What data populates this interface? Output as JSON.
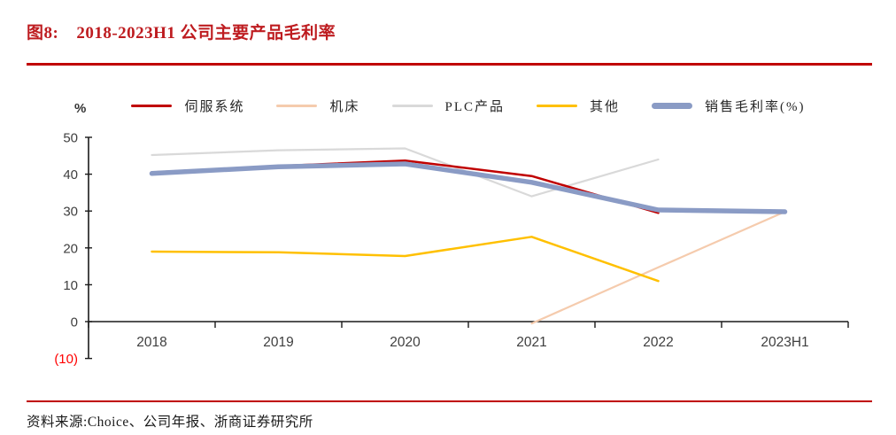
{
  "figure": {
    "label": "图8:",
    "title": "2018-2023H1 公司主要产品毛利率"
  },
  "source": {
    "label": "资料来源:",
    "text": "Choice、公司年报、浙商证券研究所"
  },
  "colors": {
    "accent_red": "#C00000",
    "axis": "#1a1a1a",
    "tick_label": "#3f3f3f",
    "negative_tick_label": "#FF0000"
  },
  "chart_data": {
    "type": "line",
    "unit_label": "%",
    "categories": [
      "2018",
      "2019",
      "2020",
      "2021",
      "2022",
      "2023H1"
    ],
    "ylim": [
      -10,
      50
    ],
    "yticks": [
      50,
      40,
      30,
      20,
      10,
      0,
      -10
    ],
    "negative_label_format": "parentheses-red",
    "grid": "off",
    "legend_position": "top",
    "series": [
      {
        "name": "伺服系统",
        "color": "#C00000",
        "width": 2.5,
        "values": [
          40.5,
          42.2,
          43.7,
          39.5,
          29.5,
          null
        ]
      },
      {
        "name": "机床",
        "color": "#F5CBAD",
        "width": 2.2,
        "values": [
          null,
          null,
          null,
          -0.5,
          14.7,
          29.8
        ]
      },
      {
        "name": "PLC产品",
        "color": "#D9D9D9",
        "width": 2.2,
        "values": [
          45.2,
          46.5,
          47.0,
          34.0,
          44.0,
          null
        ]
      },
      {
        "name": "其他",
        "color": "#FFC000",
        "width": 2.5,
        "values": [
          19.0,
          18.8,
          17.8,
          23.0,
          11.0,
          null
        ]
      },
      {
        "name": "销售毛利率(%)",
        "color": "#8A9BC5",
        "width": 5.5,
        "values": [
          40.2,
          42.0,
          42.8,
          37.8,
          30.3,
          29.8
        ]
      }
    ]
  }
}
